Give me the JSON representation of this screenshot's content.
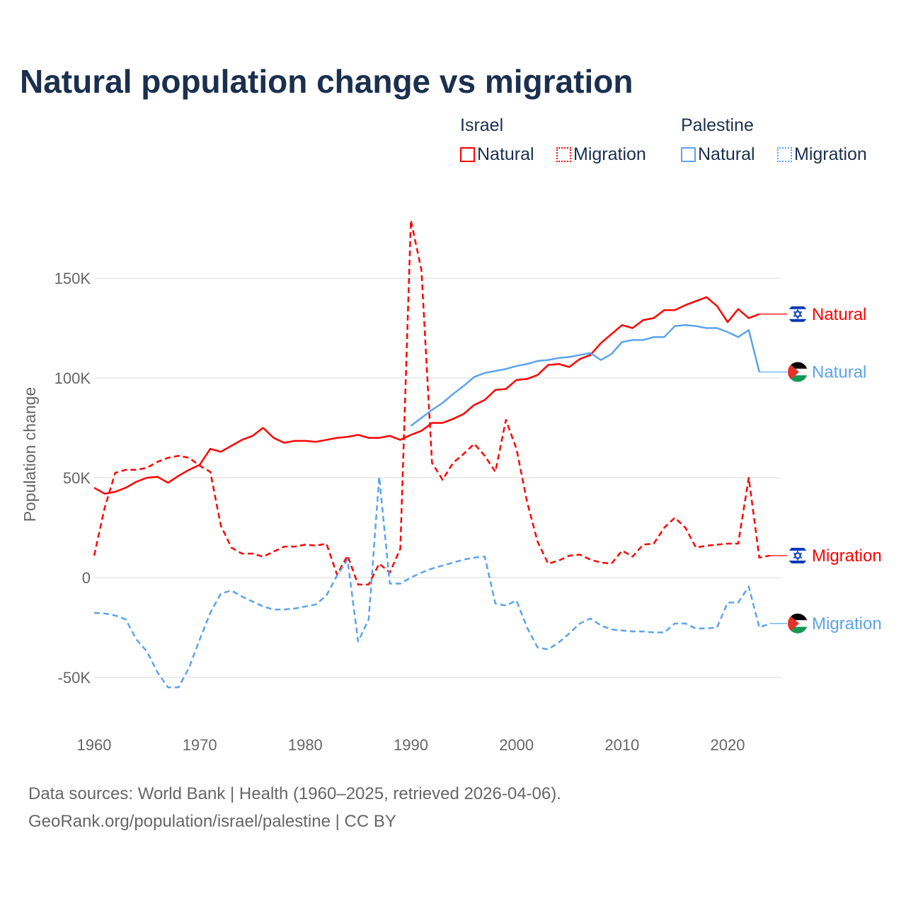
{
  "title": "Natural population change vs migration",
  "legend": {
    "groups": [
      {
        "name": "Israel",
        "items": [
          {
            "label": "Natural",
            "style": "solid",
            "color": "#ff0000"
          },
          {
            "label": "Migration",
            "style": "dotted",
            "color": "#ff0000"
          }
        ]
      },
      {
        "name": "Palestine",
        "items": [
          {
            "label": "Natural",
            "style": "solid",
            "color": "#5ba4ea"
          },
          {
            "label": "Migration",
            "style": "dotted",
            "color": "#5ba4ea"
          }
        ]
      }
    ]
  },
  "footer": {
    "line1": "Data sources: World Bank | Health (1960–2025, retrieved 2026-04-06).",
    "line2": "GeoRank.org/population/israel/palestine | CC BY"
  },
  "chart_data": {
    "type": "line",
    "title": "Natural population change vs migration",
    "xlabel": "",
    "ylabel": "Population change",
    "xlim": [
      1960,
      2025
    ],
    "ylim": [
      -75000,
      185000
    ],
    "x_ticks": [
      1960,
      1970,
      1980,
      1990,
      2000,
      2010,
      2020
    ],
    "x_tick_labels": [
      "1960",
      "1970",
      "1980",
      "1990",
      "2000",
      "2010",
      "2020"
    ],
    "y_ticks": [
      150000,
      100000,
      50000,
      0,
      -50000
    ],
    "y_tick_labels": [
      "150K",
      "100K",
      "50K",
      "0",
      "-50K"
    ],
    "grid": true,
    "legend_position": "top-right",
    "series": [
      {
        "name": "Israel Natural",
        "end_label": "Natural",
        "country": "israel",
        "color": "#ff0000",
        "dash": "solid",
        "start": 1960,
        "values": [
          45,
          42,
          43,
          45,
          48,
          50,
          50.5,
          47.5,
          51,
          54,
          56.5,
          64.5,
          63,
          66,
          69,
          71,
          75,
          70,
          67.5,
          68.5,
          68.5,
          68,
          69,
          70,
          70.5,
          71.5,
          70,
          70,
          71,
          69,
          71.5,
          73.5,
          77.5,
          77.5,
          79.5,
          82,
          86.5,
          89,
          94,
          94.5,
          99,
          99.5,
          101.5,
          106.5,
          107,
          105.5,
          109.5,
          111.5,
          117.5,
          122,
          126.5,
          125,
          129,
          130,
          134,
          134,
          136.5,
          138.5,
          140.5,
          136,
          128,
          134.5,
          130,
          132
        ]
      },
      {
        "name": "Israel Migration",
        "end_label": "Migration",
        "country": "israel",
        "color": "#ff0000",
        "dash": "dashed",
        "start": 1960,
        "values": [
          11,
          35,
          52.5,
          54,
          54,
          55,
          58,
          60,
          61,
          60,
          56,
          53,
          26,
          15,
          12,
          12,
          10.5,
          13,
          15.5,
          15.5,
          16.5,
          16,
          17,
          1.5,
          11,
          -3.5,
          -3.5,
          7,
          2.5,
          14.5,
          179,
          154,
          57.5,
          49,
          57.5,
          62,
          67,
          61,
          53,
          79,
          64.5,
          38,
          18,
          7,
          8.5,
          11,
          11.5,
          9,
          7.5,
          7,
          13.5,
          10.5,
          16.5,
          17,
          25,
          30,
          25,
          15,
          16,
          16.5,
          17,
          17,
          50,
          10,
          11
        ]
      },
      {
        "name": "Palestine Natural",
        "end_label": "Natural",
        "country": "palestine",
        "color": "#5ba4ea",
        "dash": "solid",
        "start": 1990,
        "values": [
          76,
          80,
          84,
          87.5,
          92,
          96,
          100.5,
          102.5,
          103.5,
          104.5,
          106,
          107,
          108.5,
          109,
          110,
          110.5,
          111.5,
          112.5,
          109,
          112,
          118,
          119,
          119,
          120.5,
          120.5,
          126,
          126.5,
          126,
          125,
          125,
          123,
          120.5,
          124,
          103
        ]
      },
      {
        "name": "Palestine Migration",
        "end_label": "Migration",
        "country": "palestine",
        "color": "#5ba4ea",
        "dash": "dashed",
        "start": 1960,
        "values": [
          -17.7,
          -18,
          -19,
          -21,
          -31,
          -37,
          -47.5,
          -55,
          -55,
          -45,
          -31,
          -17.7,
          -8,
          -6.5,
          -9.5,
          -12,
          -14.5,
          -16,
          -16,
          -15.5,
          -14.5,
          -13.5,
          -9,
          1,
          9,
          -32,
          -21,
          50.5,
          -3,
          -3,
          0,
          2.5,
          4.5,
          6,
          7.5,
          9,
          10,
          10.5,
          -13,
          -14,
          -11.5,
          -25,
          -35,
          -36,
          -32.5,
          -28,
          -23,
          -20.5,
          -24,
          -26,
          -26.5,
          -27,
          -27,
          -27.5,
          -27.5,
          -23,
          -23,
          -25.5,
          -25.5,
          -25,
          -12.5,
          -12.5,
          -4.5,
          -25,
          -23
        ]
      }
    ],
    "value_units": "thousands"
  }
}
